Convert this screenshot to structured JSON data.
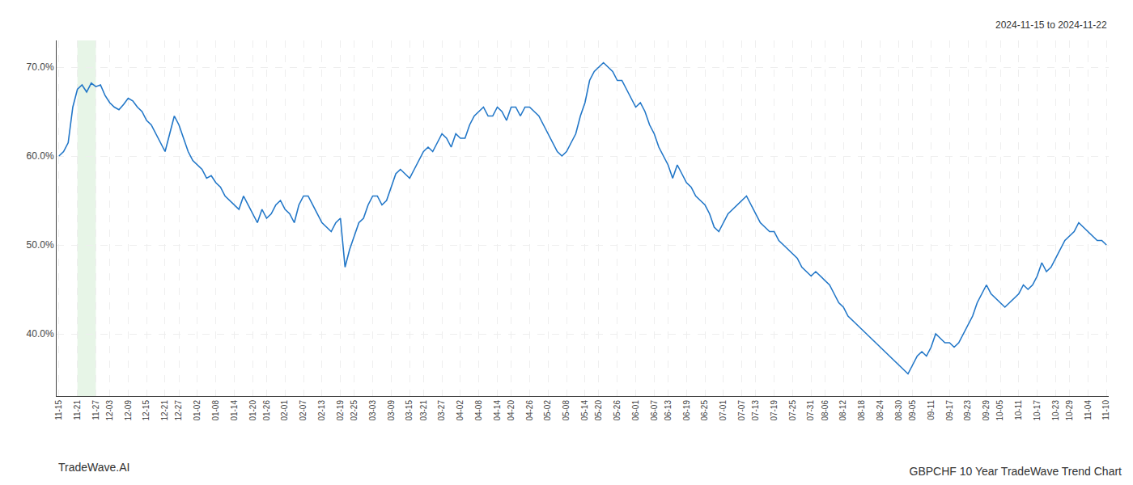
{
  "chart_data": {
    "type": "line",
    "title": "GBPCHF 10 Year TradeWave Trend Chart",
    "subtitle": "2024-11-15 to 2024-11-22",
    "annotations": [
      "TradeWave.AI"
    ],
    "color": "#2277c8",
    "grid": true,
    "ylim": [
      33,
      73
    ],
    "yticks": [
      {
        "value": 40.0,
        "label": "40.0%"
      },
      {
        "value": 50.0,
        "label": "50.0%"
      },
      {
        "value": 60.0,
        "label": "60.0%"
      },
      {
        "value": 70.0,
        "label": "70.0%"
      }
    ],
    "shaded_region": {
      "from": "11-21",
      "to": "11-27",
      "color": "#d4ecd4"
    },
    "categories": [
      "11-15",
      null,
      null,
      null,
      "11-21",
      null,
      null,
      null,
      "11-27",
      null,
      null,
      "12-03",
      null,
      null,
      null,
      "12-09",
      null,
      null,
      null,
      "12-15",
      null,
      null,
      null,
      "12-21",
      null,
      null,
      "12-27",
      null,
      null,
      null,
      "01-02",
      null,
      null,
      null,
      "01-08",
      null,
      null,
      null,
      "01-14",
      null,
      null,
      null,
      "01-20",
      null,
      null,
      "01-26",
      null,
      null,
      null,
      "02-01",
      null,
      null,
      null,
      "02-07",
      null,
      null,
      null,
      "02-13",
      null,
      null,
      null,
      "02-19",
      null,
      null,
      "02-25",
      null,
      null,
      null,
      "03-03",
      null,
      null,
      null,
      "03-09",
      null,
      null,
      null,
      "03-15",
      null,
      null,
      "03-21",
      null,
      null,
      null,
      "03-27",
      null,
      null,
      null,
      "04-02",
      null,
      null,
      null,
      "04-08",
      null,
      null,
      null,
      "04-14",
      null,
      null,
      "04-20",
      null,
      null,
      null,
      "04-26",
      null,
      null,
      null,
      "05-02",
      null,
      null,
      null,
      "05-08",
      null,
      null,
      null,
      "05-14",
      null,
      null,
      "05-20",
      null,
      null,
      null,
      "05-26",
      null,
      null,
      null,
      "06-01",
      null,
      null,
      null,
      "06-07",
      null,
      null,
      "06-13",
      null,
      null,
      null,
      "06-19",
      null,
      null,
      null,
      "06-25",
      null,
      null,
      null,
      "07-01",
      null,
      null,
      null,
      "07-07",
      null,
      null,
      "07-13",
      null,
      null,
      null,
      "07-19",
      null,
      null,
      null,
      "07-25",
      null,
      null,
      null,
      "07-31",
      null,
      null,
      "08-06",
      null,
      null,
      null,
      "08-12",
      null,
      null,
      null,
      "08-18",
      null,
      null,
      null,
      "08-24",
      null,
      null,
      null,
      "08-30",
      null,
      null,
      "09-05",
      null,
      null,
      null,
      "09-11",
      null,
      null,
      null,
      "09-17",
      null,
      null,
      null,
      "09-23",
      null,
      null,
      null,
      "09-29",
      null,
      null,
      "10-05",
      null,
      null,
      null,
      "10-11",
      null,
      null,
      null,
      "10-17",
      null,
      null,
      null,
      "10-23",
      null,
      null,
      "10-29",
      null,
      null,
      null,
      "11-04",
      null,
      null,
      null,
      "11-10"
    ],
    "values": [
      60.0,
      60.5,
      61.5,
      65.5,
      67.5,
      68.0,
      67.2,
      68.2,
      67.8,
      68.0,
      66.8,
      66.0,
      65.5,
      65.2,
      65.8,
      66.5,
      66.2,
      65.5,
      65.0,
      64.0,
      63.5,
      62.5,
      61.5,
      60.5,
      62.5,
      64.5,
      63.5,
      62.0,
      60.5,
      59.5,
      59.0,
      58.5,
      57.5,
      57.8,
      57.0,
      56.5,
      55.5,
      55.0,
      54.5,
      54.0,
      55.5,
      54.5,
      53.5,
      52.5,
      54.0,
      53.0,
      53.5,
      54.5,
      55.0,
      54.0,
      53.5,
      52.5,
      54.5,
      55.5,
      55.5,
      54.5,
      53.5,
      52.5,
      52.0,
      51.5,
      52.5,
      53.0,
      47.5,
      49.5,
      51.0,
      52.5,
      53.0,
      54.5,
      55.5,
      55.5,
      54.5,
      55.0,
      56.5,
      58.0,
      58.5,
      58.0,
      57.5,
      58.5,
      59.5,
      60.5,
      61.0,
      60.5,
      61.5,
      62.5,
      62.0,
      61.0,
      62.5,
      62.0,
      62.0,
      63.5,
      64.5,
      65.0,
      65.5,
      64.5,
      64.5,
      65.5,
      65.0,
      64.0,
      65.5,
      65.5,
      64.5,
      65.5,
      65.5,
      65.0,
      64.5,
      63.5,
      62.5,
      61.5,
      60.5,
      60.0,
      60.5,
      61.5,
      62.5,
      64.5,
      66.0,
      68.5,
      69.5,
      70.0,
      70.5,
      70.0,
      69.5,
      68.5,
      68.5,
      67.5,
      66.5,
      65.5,
      66.0,
      65.0,
      63.5,
      62.5,
      61.0,
      60.0,
      59.0,
      57.5,
      59.0,
      58.0,
      57.0,
      56.5,
      55.5,
      55.0,
      54.5,
      53.5,
      52.0,
      51.5,
      52.5,
      53.5,
      54.0,
      54.5,
      55.0,
      55.5,
      54.5,
      53.5,
      52.5,
      52.0,
      51.5,
      51.5,
      50.5,
      50.0,
      49.5,
      49.0,
      48.5,
      47.5,
      47.0,
      46.5,
      47.0,
      46.5,
      46.0,
      45.5,
      44.5,
      43.5,
      43.0,
      42.0,
      41.5,
      41.0,
      40.5,
      40.0,
      39.5,
      39.0,
      38.5,
      38.0,
      37.5,
      37.0,
      36.5,
      36.0,
      35.5,
      36.5,
      37.5,
      38.0,
      37.5,
      38.5,
      40.0,
      39.5,
      39.0,
      39.0,
      38.5,
      39.0,
      40.0,
      41.0,
      42.0,
      43.5,
      44.5,
      45.5,
      44.5,
      44.0,
      43.5,
      43.0,
      43.5,
      44.0,
      44.5,
      45.5,
      45.0,
      45.5,
      46.5,
      48.0,
      47.0,
      47.5,
      48.5,
      49.5,
      50.5,
      51.0,
      51.5,
      52.5,
      52.0,
      51.5,
      51.0,
      50.5,
      50.5,
      50.0
    ]
  }
}
